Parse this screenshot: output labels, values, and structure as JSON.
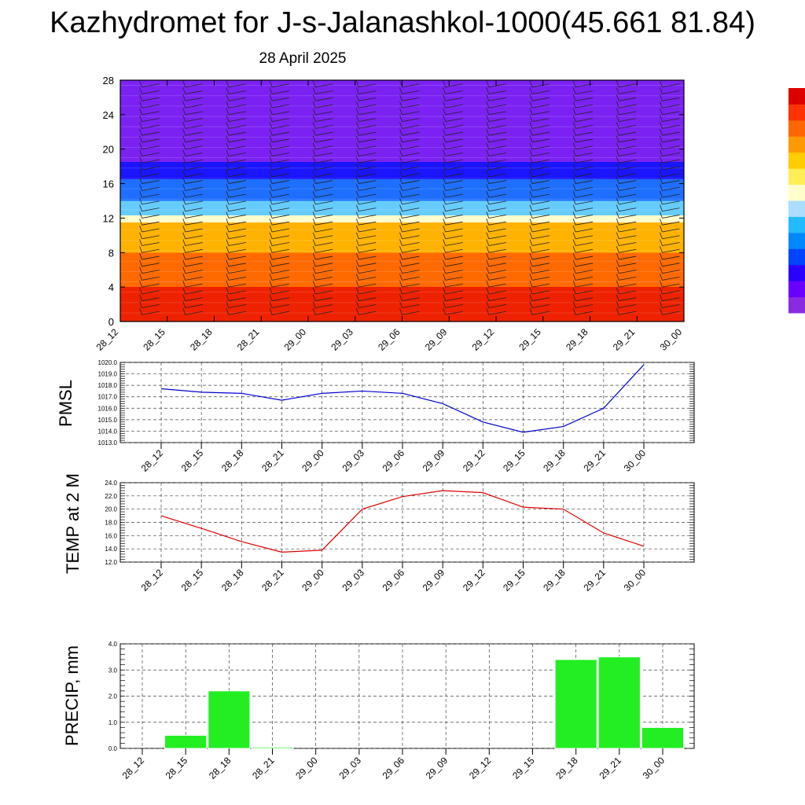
{
  "title": "Kazhydromet for J-s-Jalanashkol-1000(45.661 81.84)",
  "subtitle": "28 April 2025",
  "time_labels": [
    "28_12",
    "28_15",
    "28_18",
    "28_21",
    "29_00",
    "29_03",
    "29_06",
    "29_09",
    "29_12",
    "29_15",
    "29_18",
    "29_21",
    "30_00"
  ],
  "panels": {
    "pmsl": {
      "ylabel": "PMSL"
    },
    "temp": {
      "ylabel": "TEMP at 2 M"
    },
    "precip": {
      "ylabel": "PRECIP, mm"
    }
  },
  "colors": {
    "pmsl_line": "#0000cc",
    "temp_line": "#dd0000",
    "precip_bar": "#22ee22",
    "colorbar": [
      "#8a2be2",
      "#6a00ff",
      "#2a00ff",
      "#0044ff",
      "#0088ff",
      "#22bbff",
      "#aaddff",
      "#ffffcc",
      "#ffee55",
      "#ffcc00",
      "#ff9900",
      "#ff6600",
      "#ff3300",
      "#dd0000"
    ]
  },
  "chart_data": [
    {
      "type": "heatmap",
      "id": "cross-section",
      "categories": [
        "28_12",
        "28_15",
        "28_18",
        "28_21",
        "29_00",
        "29_03",
        "29_06",
        "29_09",
        "29_12",
        "29_15",
        "29_18",
        "29_21",
        "30_00"
      ],
      "ylim": [
        0,
        28
      ],
      "yticks": [
        0,
        4,
        8,
        12,
        16,
        20,
        24,
        28
      ],
      "bands": [
        {
          "from": 0,
          "to": 4,
          "color": "#ee2200"
        },
        {
          "from": 4,
          "to": 8,
          "color": "#ff6a00"
        },
        {
          "from": 8,
          "to": 11.5,
          "color": "#ffb300"
        },
        {
          "from": 11.5,
          "to": 12.3,
          "color": "#ffffcc"
        },
        {
          "from": 12.3,
          "to": 14,
          "color": "#66ccff"
        },
        {
          "from": 14,
          "to": 16.5,
          "color": "#1e6fff"
        },
        {
          "from": 16.5,
          "to": 18.5,
          "color": "#1a14ff"
        },
        {
          "from": 18.5,
          "to": 28,
          "color": "#7b22f2"
        }
      ]
    },
    {
      "type": "line",
      "id": "pmsl",
      "categories": [
        "28_12",
        "28_15",
        "28_18",
        "28_21",
        "29_00",
        "29_03",
        "29_06",
        "29_09",
        "29_12",
        "29_15",
        "29_18",
        "29_21",
        "30_00"
      ],
      "values": [
        1017.7,
        1017.4,
        1017.3,
        1016.7,
        1017.3,
        1017.5,
        1017.3,
        1016.4,
        1014.8,
        1013.9,
        1014.4,
        1016.0,
        1019.8
      ],
      "ylim": [
        1013.0,
        1020.0
      ],
      "yticks": [
        "1013.0",
        "1014.0",
        "1015.0",
        "1016.0",
        "1017.0",
        "1018.0",
        "1019.0",
        "1020.0"
      ],
      "ylabel": "PMSL"
    },
    {
      "type": "line",
      "id": "temp",
      "categories": [
        "28_12",
        "28_15",
        "28_18",
        "28_21",
        "29_00",
        "29_03",
        "29_06",
        "29_09",
        "29_12",
        "29_15",
        "29_18",
        "29_21",
        "30_00"
      ],
      "values": [
        19.0,
        17.1,
        15.1,
        13.5,
        13.8,
        20.0,
        21.9,
        22.8,
        22.5,
        20.3,
        20.0,
        16.4,
        14.4
      ],
      "ylim": [
        12.0,
        24.0
      ],
      "yticks": [
        "12.0",
        "14.0",
        "16.0",
        "18.0",
        "20.0",
        "22.0",
        "24.0"
      ],
      "ylabel": "TEMP at 2 M"
    },
    {
      "type": "bar",
      "id": "precip",
      "categories": [
        "28_12",
        "28_15",
        "28_18",
        "28_21",
        "29_00",
        "29_03",
        "29_06",
        "29_09",
        "29_12",
        "29_15",
        "29_18",
        "29_21",
        "30_00"
      ],
      "values": [
        0,
        0.5,
        2.2,
        0.05,
        0,
        0,
        0,
        0,
        0,
        0,
        3.4,
        3.5,
        0.8
      ],
      "ylim": [
        0.0,
        4.0
      ],
      "yticks": [
        "0.0",
        "1.0",
        "2.0",
        "3.0",
        "4.0"
      ],
      "ylabel": "PRECIP, mm"
    }
  ]
}
